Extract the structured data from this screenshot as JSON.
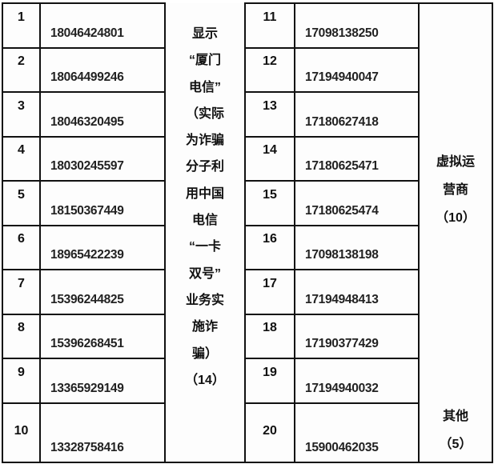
{
  "left": {
    "rows": [
      {
        "n": "1",
        "phone": "18046424801"
      },
      {
        "n": "2",
        "phone": "18064499246"
      },
      {
        "n": "3",
        "phone": "18046320495"
      },
      {
        "n": "4",
        "phone": "18030245597"
      },
      {
        "n": "5",
        "phone": "18150367449"
      },
      {
        "n": "6",
        "phone": "18965422239"
      },
      {
        "n": "7",
        "phone": "15396244825"
      },
      {
        "n": "8",
        "phone": "15396268451"
      },
      {
        "n": "9",
        "phone": "13365929149"
      },
      {
        "n": "10",
        "phone": "13328758416"
      }
    ],
    "note_lines": [
      "显示",
      "“厦门",
      "电信”",
      "（实际",
      "为诈骗",
      "分子利",
      "用中国",
      "电信",
      "“一卡",
      "双号”",
      "业务实",
      "施诈",
      "骗）",
      "（14）"
    ]
  },
  "right": {
    "rows": [
      {
        "n": "11",
        "phone": "17098138250"
      },
      {
        "n": "12",
        "phone": "17194940047"
      },
      {
        "n": "13",
        "phone": "17180627418"
      },
      {
        "n": "14",
        "phone": "17180625471"
      },
      {
        "n": "15",
        "phone": "17180625474"
      },
      {
        "n": "16",
        "phone": "17098138198"
      },
      {
        "n": "17",
        "phone": "17194948413"
      },
      {
        "n": "18",
        "phone": "17190377429"
      },
      {
        "n": "19",
        "phone": "17194940032"
      },
      {
        "n": "20",
        "phone": "15900462035"
      }
    ],
    "virtual_lines": [
      "虚拟运",
      "营商",
      "（10）"
    ],
    "other_lines": [
      "其他",
      "（5）"
    ]
  }
}
